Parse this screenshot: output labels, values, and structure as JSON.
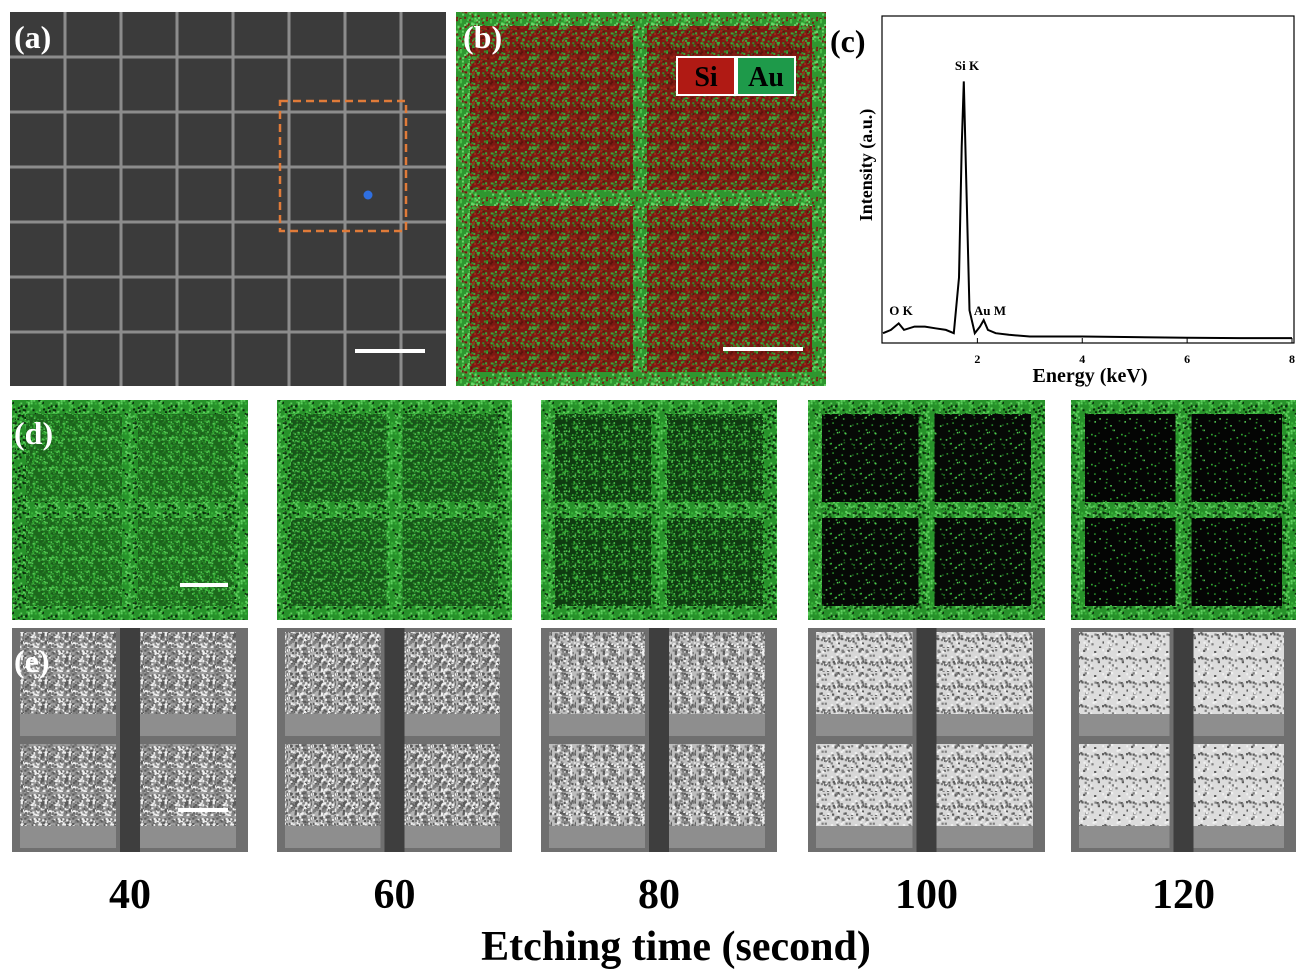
{
  "labels": [
    "(a)",
    "(b)",
    "(c)",
    "(d)",
    "(e)"
  ],
  "legend": [
    "Si",
    "Au"
  ],
  "etching_times": [
    40,
    60,
    80,
    100,
    120
  ],
  "etching_axis_title": "Etching time (second)",
  "chart_data": {
    "type": "line",
    "xlabel": "Energy (keV)",
    "ylabel": "Intensity (a.u.)",
    "annotations": [
      "O K",
      "Si K",
      "Au M"
    ],
    "x": [
      0.2,
      0.35,
      0.5,
      0.6,
      0.8,
      1.0,
      1.2,
      1.4,
      1.55,
      1.65,
      1.7,
      1.74,
      1.78,
      1.85,
      1.95,
      2.05,
      2.12,
      2.2,
      2.35,
      2.6,
      3,
      4,
      5,
      6,
      7,
      8
    ],
    "values": [
      3,
      4,
      6,
      4,
      5,
      5,
      4.5,
      4,
      3,
      20,
      60,
      80,
      55,
      10,
      3,
      5,
      7,
      4,
      3,
      2.5,
      2,
      2,
      1.8,
      1.6,
      1.5,
      1.5
    ],
    "color": "#000000",
    "xlim": [
      0.2,
      8
    ],
    "xticks": [
      2,
      4,
      6,
      8
    ],
    "ylim": [
      0,
      100
    ]
  }
}
